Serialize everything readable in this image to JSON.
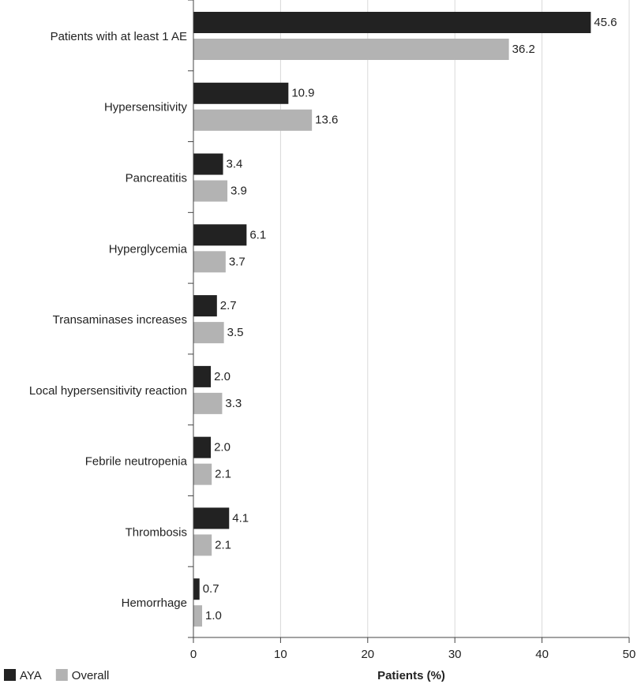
{
  "chart_data": {
    "type": "bar",
    "orientation": "horizontal",
    "categories": [
      "Patients with at least 1 AE",
      "Hypersensitivity",
      "Pancreatitis",
      "Hyperglycemia",
      "Transaminases increases",
      "Local hypersensitivity reaction",
      "Febrile neutropenia",
      "Thrombosis",
      "Hemorrhage"
    ],
    "series": [
      {
        "name": "AYA",
        "color": "#222222",
        "values": [
          45.6,
          10.9,
          3.4,
          6.1,
          2.7,
          2.0,
          2.0,
          4.1,
          0.7
        ],
        "value_labels": [
          "45.6",
          "10.9",
          "3.4",
          "6.1",
          "2.7",
          "2.0",
          "2.0",
          "4.1",
          "0.7"
        ]
      },
      {
        "name": "Overall",
        "color": "#b3b3b3",
        "values": [
          36.2,
          13.6,
          3.9,
          3.7,
          3.5,
          3.3,
          2.1,
          2.1,
          1.0
        ],
        "value_labels": [
          "36.2",
          "13.6",
          "3.9",
          "3.7",
          "3.5",
          "3.3",
          "2.1",
          "2.1",
          "1.0"
        ]
      }
    ],
    "xlabel": "Patients (%)",
    "xlim": [
      0,
      50
    ],
    "xticks": [
      0,
      10,
      20,
      30,
      40,
      50
    ],
    "grid": true,
    "legend": "bottom-left"
  }
}
